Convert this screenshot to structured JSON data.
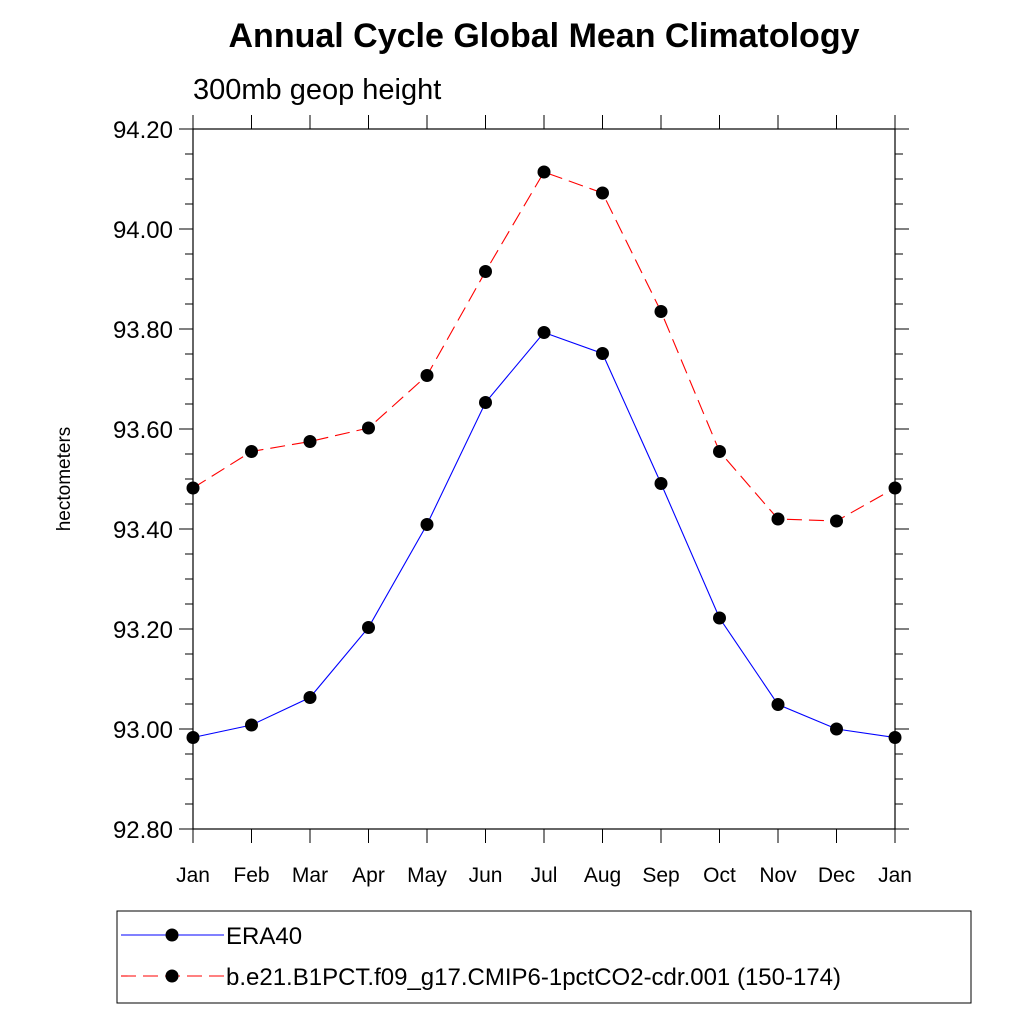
{
  "chart_data": {
    "type": "line",
    "title": "Annual Cycle Global Mean Climatology",
    "subtitle": "300mb geop height",
    "xlabel": "",
    "ylabel": "hectometers",
    "categories": [
      "Jan",
      "Feb",
      "Mar",
      "Apr",
      "May",
      "Jun",
      "Jul",
      "Aug",
      "Sep",
      "Oct",
      "Nov",
      "Dec",
      "Jan"
    ],
    "ylim": [
      92.8,
      94.2
    ],
    "yticks": [
      "92.80",
      "93.00",
      "93.20",
      "93.40",
      "93.60",
      "93.80",
      "94.00",
      "94.20"
    ],
    "grid": false,
    "legend_position": "bottom",
    "series": [
      {
        "name": "ERA40",
        "color": "#0000ff",
        "line_style": "solid",
        "marker": "filled-circle",
        "values": [
          92.983,
          93.008,
          93.063,
          93.203,
          93.409,
          93.653,
          93.793,
          93.751,
          93.491,
          93.222,
          93.049,
          93.0,
          92.983
        ]
      },
      {
        "name": "b.e21.B1PCT.f09_g17.CMIP6-1pctCO2-cdr.001 (150-174)",
        "color": "#ff0000",
        "line_style": "dashed",
        "marker": "filled-circle",
        "values": [
          93.482,
          93.555,
          93.575,
          93.602,
          93.707,
          93.915,
          94.114,
          94.072,
          93.835,
          93.555,
          93.42,
          93.416,
          93.482
        ]
      }
    ]
  }
}
